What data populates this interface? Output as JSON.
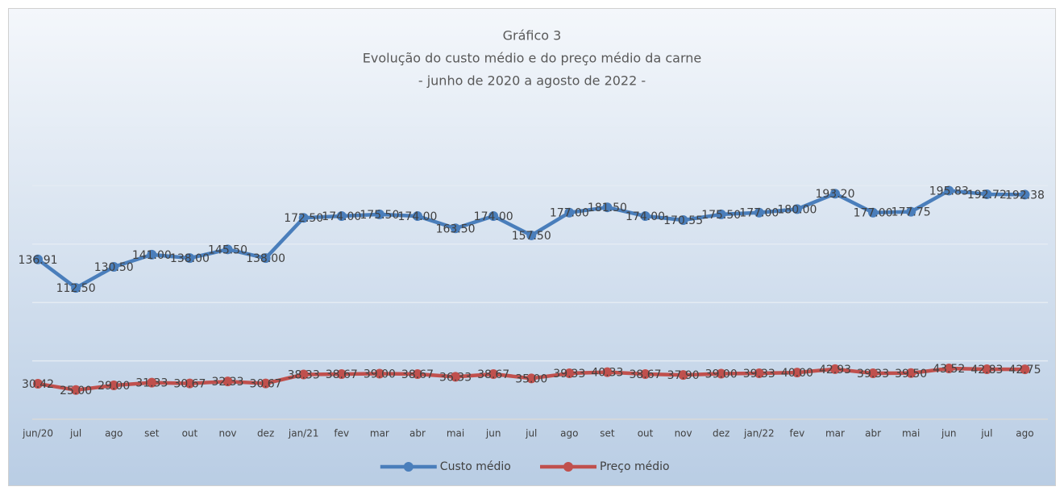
{
  "chart_data": {
    "type": "line",
    "title": [
      "Gráfico 3",
      "Evolução do custo médio e do preço médio da carne",
      "- junho de 2020 a agosto de 2022 -"
    ],
    "categories": [
      "jun/20",
      "jul",
      "ago",
      "set",
      "out",
      "nov",
      "dez",
      "jan/21",
      "fev",
      "mar",
      "abr",
      "mai",
      "jun",
      "jul",
      "ago",
      "set",
      "out",
      "nov",
      "dez",
      "jan/22",
      "fev",
      "mar",
      "abr",
      "mai",
      "jun",
      "jul",
      "ago"
    ],
    "series": [
      {
        "name": "Custo médio",
        "color": "#4a7ebb",
        "values": [
          136.91,
          112.5,
          130.5,
          141,
          138,
          145.5,
          138,
          172.5,
          174,
          175.5,
          174,
          163.5,
          174,
          157.5,
          177,
          181.5,
          174,
          170.55,
          175.5,
          177,
          180,
          193.2,
          177,
          177.75,
          195.83,
          192.72,
          192.38
        ],
        "value_labels": [
          "136.91",
          "112.50",
          "130.50",
          "141.00",
          "138.00",
          "145.50",
          "138.00",
          "172.50",
          "174.00",
          "175.50",
          "174.00",
          "163.50",
          "174.00",
          "157.50",
          "177.00",
          "181.50",
          "174.00",
          "170.55",
          "175.50",
          "177.00",
          "180.00",
          "193.20",
          "177.00",
          "177.75",
          "195.83",
          "192.72",
          "192.38"
        ]
      },
      {
        "name": "Preço médio",
        "color": "#c0504d",
        "values": [
          30.42,
          25,
          29,
          31.33,
          30.67,
          32.33,
          30.67,
          38.33,
          38.67,
          39,
          38.67,
          36.33,
          38.67,
          35,
          39.33,
          40.33,
          38.67,
          37.9,
          39,
          39.33,
          40,
          42.93,
          39.33,
          39.5,
          43.52,
          42.83,
          42.75
        ],
        "value_labels": [
          "30.42",
          "25.00",
          "29.00",
          "31.33",
          "30.67",
          "32.33",
          "30.67",
          "38.33",
          "38.67",
          "39.00",
          "38.67",
          "36.33",
          "38.67",
          "35.00",
          "39.33",
          "40.33",
          "38.67",
          "37.90",
          "39.00",
          "39.33",
          "40.00",
          "42.93",
          "39.33",
          "39.50",
          "43.52",
          "42.83",
          "42.75"
        ]
      }
    ],
    "ylim": [
      0,
      250
    ],
    "yticks": [
      0,
      50,
      100,
      150,
      200,
      250
    ],
    "grid": true,
    "legend": "bottom"
  }
}
